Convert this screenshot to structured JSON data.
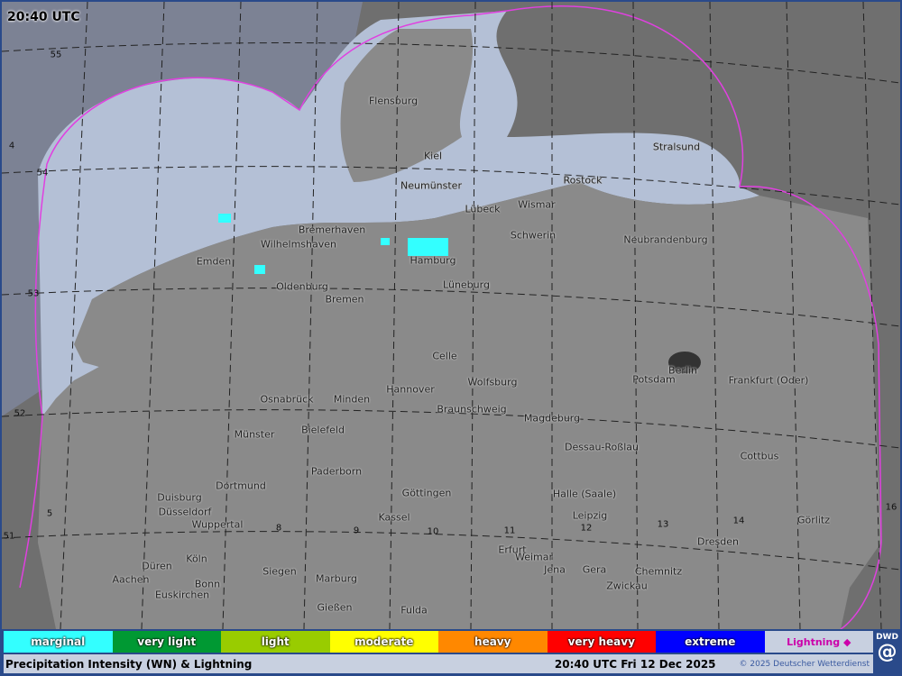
{
  "map": {
    "time_label": "20:40 UTC",
    "cities": [
      "Flensburg",
      "Kiel",
      "Neumünster",
      "Lübeck",
      "Wismar",
      "Stralsund",
      "Rostock",
      "Schwerin",
      "Neubrandenburg",
      "Bremerhaven",
      "Wilhelmshaven",
      "Emden",
      "Hamburg",
      "Oldenburg",
      "Bremen",
      "Lüneburg",
      "Celle",
      "Berlin",
      "Potsdam",
      "Frankfurt (Oder)",
      "Hannover",
      "Wolfsburg",
      "Osnabrück",
      "Minden",
      "Braunschweig",
      "Magdeburg",
      "Münster",
      "Bielefeld",
      "Dessau-Roßlau",
      "Cottbus",
      "Paderborn",
      "Dortmund",
      "Duisburg",
      "Halle (Saale)",
      "Göttingen",
      "Düsseldorf",
      "Wuppertal",
      "Kassel",
      "Leipzig",
      "Görlitz",
      "Dresden",
      "Köln",
      "Erfurt",
      "Weimar",
      "Düren",
      "Siegen",
      "Jena",
      "Gera",
      "Chemnitz",
      "Aachen",
      "Marburg",
      "Bonn",
      "Zwickau",
      "Euskirchen",
      "Gießen",
      "Fulda"
    ],
    "grid_labels": [
      "55",
      "54",
      "53",
      "52",
      "51",
      "4",
      "5",
      "8",
      "9",
      "10",
      "11",
      "12",
      "13",
      "14",
      "16"
    ],
    "colors": {
      "radar_boundary": "#e040e0",
      "sea": "#b4c0d6",
      "land": "#8c8c8c",
      "outside": "#7c8294"
    }
  },
  "legend": [
    {
      "label": "marginal",
      "color": "#33ffff"
    },
    {
      "label": "very light",
      "color": "#009933"
    },
    {
      "label": "light",
      "color": "#99cc00"
    },
    {
      "label": "moderate",
      "color": "#ffff00"
    },
    {
      "label": "heavy",
      "color": "#ff8800"
    },
    {
      "label": "very heavy",
      "color": "#ff0000"
    },
    {
      "label": "extreme",
      "color": "#0000ff"
    },
    {
      "label": "Lightning ◆",
      "color": "#cc00aa"
    }
  ],
  "footer": {
    "title": "Precipitation Intensity (WN) & Lightning",
    "datetime": "20:40 UTC Fri 12 Dec 2025",
    "copyright": "© 2025 Deutscher Wetterdienst",
    "logo": "DWD"
  }
}
